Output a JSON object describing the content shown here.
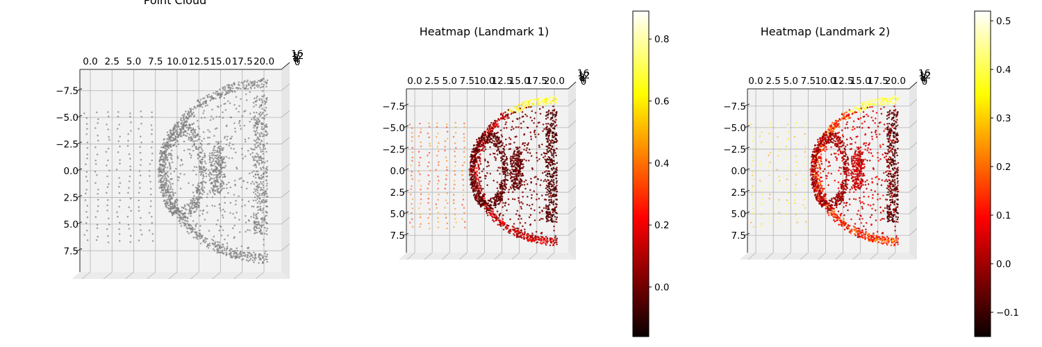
{
  "chart_data": [
    {
      "type": "scatter",
      "title": "Point Cloud",
      "xticks": [
        "0.0",
        "2.5",
        "5.0",
        "7.5",
        "10.0",
        "12.5",
        "15.0",
        "17.5",
        "20.0"
      ],
      "yticks": [
        "−7.5",
        "−5.0",
        "−2.5",
        "0.0",
        "2.5",
        "5.0",
        "7.5"
      ],
      "zticks": [
        "16",
        "12",
        "8",
        "4",
        "0"
      ],
      "xlim": [
        -1.2,
        22.0
      ],
      "ylim": [
        -9.5,
        9.5
      ],
      "color": "#808080",
      "colorbar": null
    },
    {
      "type": "scatter",
      "title": "Heatmap (Landmark 1)",
      "xticks": [
        "0.0",
        "2.5",
        "5.0",
        "7.5",
        "10.0",
        "12.5",
        "15.0",
        "17.5",
        "20.0"
      ],
      "yticks": [
        "−7.5",
        "−5.0",
        "−2.5",
        "0.0",
        "2.5",
        "5.0",
        "7.5"
      ],
      "zticks": [
        "16",
        "12",
        "8",
        "4",
        "0"
      ],
      "xlim": [
        -1.2,
        22.0
      ],
      "ylim": [
        -9.5,
        9.5
      ],
      "colormap": "hot",
      "colorbar": {
        "min": -0.16,
        "max": 0.89,
        "ticks": [
          {
            "value": 0.0,
            "label": "0.0"
          },
          {
            "value": 0.2,
            "label": "0.2"
          },
          {
            "value": 0.4,
            "label": "0.4"
          },
          {
            "value": 0.6,
            "label": "0.6"
          },
          {
            "value": 0.8,
            "label": "0.8"
          }
        ]
      }
    },
    {
      "type": "scatter",
      "title": "Heatmap (Landmark 2)",
      "xticks": [
        "0.0",
        "2.5",
        "5.0",
        "7.5",
        "10.0",
        "12.5",
        "15.0",
        "17.5",
        "20.0"
      ],
      "yticks": [
        "−7.5",
        "−5.0",
        "−2.5",
        "0.0",
        "2.5",
        "5.0",
        "7.5"
      ],
      "zticks": [
        "16",
        "12",
        "8",
        "4",
        "0"
      ],
      "xlim": [
        -1.2,
        22.0
      ],
      "ylim": [
        -9.5,
        9.5
      ],
      "colormap": "hot",
      "colorbar": {
        "min": -0.15,
        "max": 0.52,
        "ticks": [
          {
            "value": -0.1,
            "label": "−0.1"
          },
          {
            "value": 0.0,
            "label": "0.0"
          },
          {
            "value": 0.1,
            "label": "0.1"
          },
          {
            "value": 0.2,
            "label": "0.2"
          },
          {
            "value": 0.3,
            "label": "0.3"
          },
          {
            "value": 0.4,
            "label": "0.4"
          },
          {
            "value": 0.5,
            "label": "0.5"
          }
        ]
      }
    }
  ]
}
